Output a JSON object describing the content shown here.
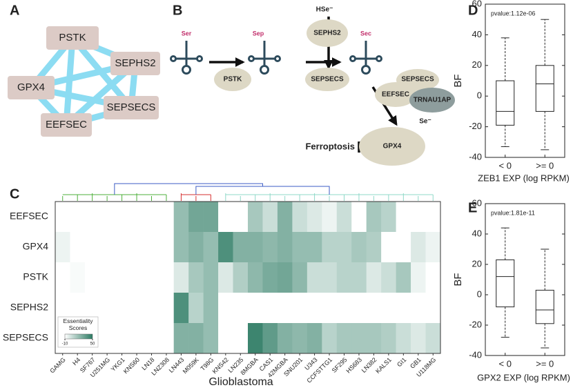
{
  "panel_labels": [
    "A",
    "B",
    "C",
    "D",
    "E"
  ],
  "network": {
    "nodes": [
      "PSTK",
      "SEPHS2",
      "GPX4",
      "SEPSECS",
      "EEFSEC"
    ]
  },
  "pathway": {
    "amino_acids": [
      "Ser",
      "Sep",
      "Sec"
    ],
    "ions": [
      "HSe⁻",
      "Se⁻"
    ],
    "enzymes": [
      "PSTK",
      "SEPHS2",
      "SEPSECS",
      "SEPSECS",
      "EEFSEC",
      "TRNAU1AP",
      "GPX4"
    ],
    "outcome": "Ferroptosis"
  },
  "chart_data": [
    {
      "type": "heatmap",
      "rows": [
        "EEFSEC",
        "GPX4",
        "PSTK",
        "SEPHS2",
        "SEPSECS"
      ],
      "categories": [
        "GAMG",
        "H4",
        "SF767",
        "U251MG",
        "YKG1",
        "KNS60",
        "LN18",
        "LNZ308",
        "LN443",
        "M059K",
        "T98G",
        "KNS42",
        "LN235",
        "8MGBA",
        "CAS1",
        "42MGBA",
        "SNU201",
        "U343",
        "CCFSTTG1",
        "SF295",
        "HS683",
        "LN382",
        "KALS1",
        "GI1",
        "GB1",
        "U118MG"
      ],
      "values": [
        [
          -10,
          -10,
          -10,
          -10,
          -10,
          -10,
          -10,
          -10,
          20,
          30,
          30,
          -10,
          -10,
          15,
          5,
          25,
          5,
          0,
          -5,
          5,
          -10,
          15,
          10,
          -10,
          -10,
          -10
        ],
        [
          -5,
          -10,
          -10,
          -10,
          -10,
          -10,
          -10,
          -10,
          20,
          25,
          20,
          40,
          25,
          25,
          22,
          25,
          20,
          20,
          10,
          10,
          15,
          12,
          -10,
          -10,
          0,
          -5
        ],
        [
          -10,
          -8,
          -10,
          -10,
          -10,
          -10,
          -10,
          -10,
          0,
          15,
          20,
          0,
          12,
          22,
          28,
          30,
          22,
          5,
          5,
          10,
          10,
          0,
          5,
          15,
          -5,
          -10
        ],
        [
          -10,
          -10,
          -10,
          -10,
          -10,
          -10,
          -10,
          -10,
          40,
          10,
          20,
          -10,
          -10,
          -10,
          -10,
          -10,
          -10,
          -10,
          -10,
          -10,
          -10,
          -10,
          -10,
          -10,
          -10,
          -10
        ],
        [
          -10,
          -10,
          -10,
          -10,
          -10,
          -10,
          -10,
          -10,
          25,
          25,
          20,
          -10,
          -10,
          45,
          35,
          25,
          22,
          25,
          10,
          15,
          15,
          15,
          12,
          5,
          0,
          5
        ]
      ],
      "colorbar_title": "Essentiality Scores",
      "clim": [
        -10,
        50
      ],
      "cticks": [
        -10,
        50
      ],
      "cmap": [
        "#ffffff",
        "#2b7a62"
      ],
      "xlabel": "Glioblastoma"
    },
    {
      "type": "box",
      "annotation": "pvalue:1.12e-06",
      "ylabel": "BF",
      "xlabel": "ZEB1 EXP (log RPKM)",
      "categories": [
        "< 0",
        ">= 0"
      ],
      "boxes": [
        {
          "whislo": -33,
          "q1": -19,
          "med": -10,
          "q3": 10,
          "whishi": 38
        },
        {
          "whislo": -35,
          "q1": -10,
          "med": 8,
          "q3": 20,
          "whishi": 50
        }
      ],
      "ylim": [
        -40,
        60
      ],
      "yticks": [
        -40,
        -20,
        0,
        20,
        40,
        60
      ]
    },
    {
      "type": "box",
      "annotation": "pvalue:1.81e-11",
      "ylabel": "BF",
      "xlabel": "GPX2 EXP (log RPKM)",
      "categories": [
        "< 0",
        ">= 0"
      ],
      "boxes": [
        {
          "whislo": -28,
          "q1": -8,
          "med": 12,
          "q3": 23,
          "whishi": 44
        },
        {
          "whislo": -35,
          "q1": -19,
          "med": -10,
          "q3": 3,
          "whishi": 30
        }
      ],
      "ylim": [
        -40,
        60
      ],
      "yticks": [
        -40,
        -20,
        0,
        20,
        40,
        60
      ]
    }
  ]
}
